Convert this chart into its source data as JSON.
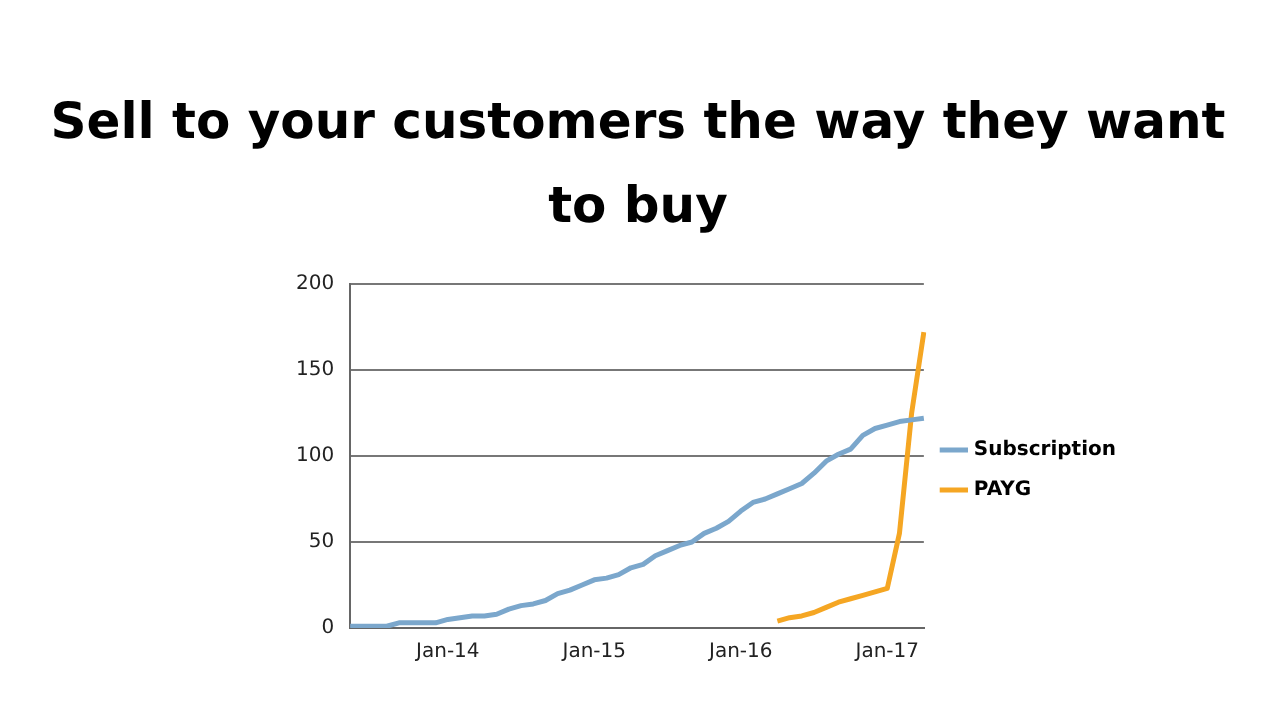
{
  "chart_data": {
    "type": "line",
    "title": "Sell to your customers the way they want to buy",
    "categories": [
      null,
      null,
      null,
      null,
      null,
      null,
      null,
      null,
      "Jan-14",
      null,
      null,
      null,
      null,
      null,
      null,
      null,
      null,
      null,
      null,
      null,
      "Jan-15",
      null,
      null,
      null,
      null,
      null,
      null,
      null,
      null,
      null,
      null,
      null,
      "Jan-16",
      null,
      null,
      null,
      null,
      null,
      null,
      null,
      null,
      null,
      null,
      null,
      "Jan-17",
      null,
      null,
      null
    ],
    "series": [
      {
        "name": "Subscription",
        "color": "#7ba7cc",
        "values": [
          1,
          1,
          1,
          1,
          3,
          3,
          3,
          3,
          5,
          6,
          7,
          7,
          8,
          11,
          13,
          14,
          16,
          20,
          22,
          25,
          28,
          29,
          31,
          35,
          37,
          42,
          45,
          48,
          50,
          55,
          58,
          62,
          68,
          73,
          75,
          78,
          81,
          84,
          90,
          97,
          101,
          104,
          112,
          116,
          118,
          120,
          121,
          122
        ]
      },
      {
        "name": "PAYG",
        "color": "#f5a623",
        "values": [
          null,
          null,
          null,
          null,
          null,
          null,
          null,
          null,
          null,
          null,
          null,
          null,
          null,
          null,
          null,
          null,
          null,
          null,
          null,
          null,
          null,
          null,
          null,
          null,
          null,
          null,
          null,
          null,
          null,
          null,
          null,
          null,
          null,
          null,
          null,
          4,
          6,
          7,
          9,
          12,
          15,
          17,
          19,
          21,
          23,
          55,
          125,
          172
        ]
      }
    ],
    "ylim": [
      0,
      200
    ],
    "yticks": [
      0,
      50,
      100,
      150,
      200
    ],
    "grid": "y",
    "legend": "right",
    "marker": "none",
    "line_style": "solid"
  }
}
